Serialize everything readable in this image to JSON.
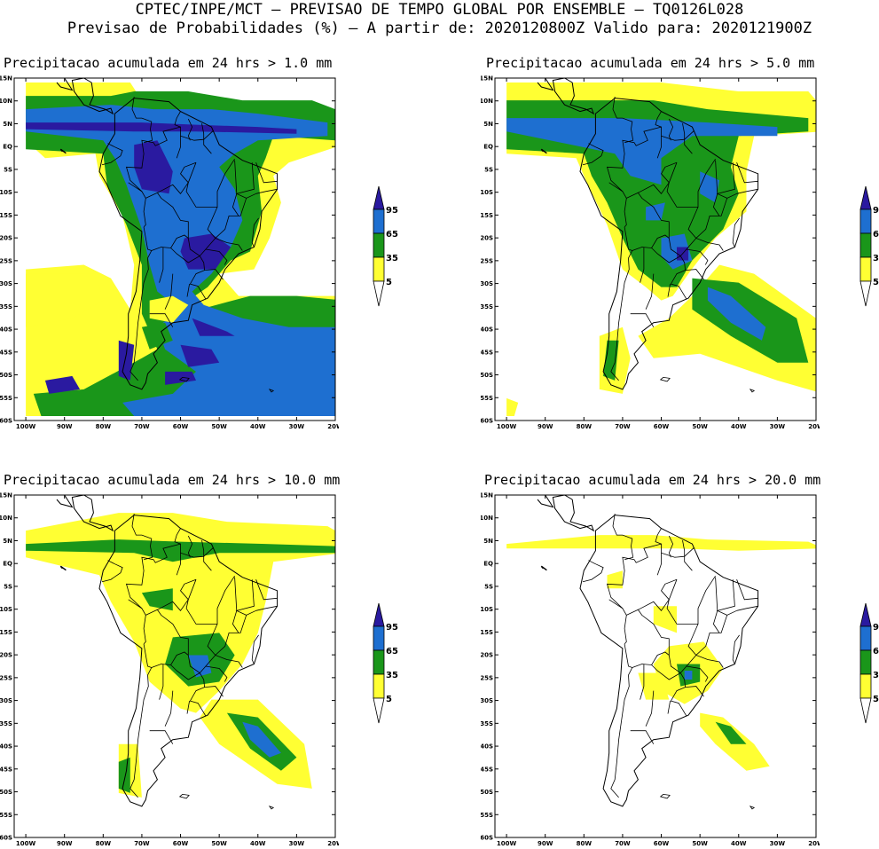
{
  "header": {
    "line1": "CPTEC/INPE/MCT – PREVISAO DE TEMPO GLOBAL POR ENSEMBLE – TQ0126L028",
    "line2": "Previsao de Probabilidades (%) –  A partir de: 2020120800Z  Valido para: 2020121900Z"
  },
  "lat_labels": [
    "15N",
    "10N",
    "5N",
    "EQ",
    "5S",
    "10S",
    "15S",
    "20S",
    "25S",
    "30S",
    "35S",
    "40S",
    "45S",
    "50S",
    "55S",
    "60S"
  ],
  "lon_labels": [
    "100W",
    "90W",
    "80W",
    "70W",
    "60W",
    "50W",
    "40W",
    "30W",
    "20W"
  ],
  "legend": {
    "labels": [
      "95",
      "65",
      "35",
      "5"
    ],
    "colors": {
      "over95": "#2a1aa0",
      "p65_95": "#1e6fd0",
      "p35_65": "#1a961a",
      "p5_35": "#ffff33",
      "below5": "#ffffff"
    }
  },
  "panels": [
    {
      "title": "Precipitacao acumulada em 24 hrs > 1.0 mm",
      "threshold_mm": 1.0
    },
    {
      "title": "Precipitacao acumulada em 24 hrs > 5.0 mm",
      "threshold_mm": 5.0
    },
    {
      "title": "Precipitacao acumulada em 24 hrs > 10.0 mm",
      "threshold_mm": 10.0
    },
    {
      "title": "Precipitacao acumulada em 24 hrs > 20.0 mm",
      "threshold_mm": 20.0
    }
  ]
}
